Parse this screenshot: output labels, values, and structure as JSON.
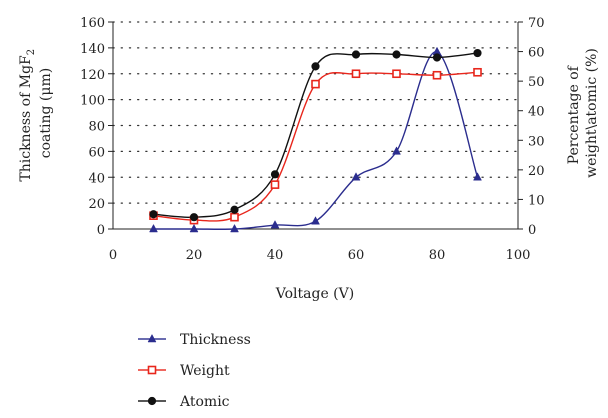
{
  "chart_data": {
    "type": "line",
    "xlabel": "Voltage (V)",
    "ylabel_left_line1": "Thickness of MgF",
    "ylabel_left_sub": "2",
    "ylabel_left_line2": "coating (μm)",
    "ylabel_right_line1": "Percentage of",
    "ylabel_right_line2": "weight\\atomic (%)",
    "xlim": [
      0,
      100
    ],
    "ylim_left": [
      0,
      160
    ],
    "ylim_right": [
      0,
      70
    ],
    "x_ticks": [
      "0",
      "20",
      "40",
      "60",
      "80",
      "100"
    ],
    "y_left_ticks": [
      "0",
      "20",
      "40",
      "60",
      "80",
      "100",
      "120",
      "140",
      "160"
    ],
    "y_right_ticks": [
      "0",
      "10",
      "20",
      "30",
      "40",
      "50",
      "60",
      "70"
    ],
    "grid": "horizontal-dotted",
    "legend_placement": "bottom-left",
    "x": [
      10,
      20,
      30,
      40,
      50,
      60,
      70,
      80,
      90
    ],
    "series": [
      {
        "name": "Thickness",
        "axis": "left",
        "marker": "triangle",
        "color": "#2b2d8e",
        "values": [
          0,
          0,
          0,
          3,
          6,
          40,
          60,
          137,
          40
        ]
      },
      {
        "name": "Weight",
        "axis": "right",
        "marker": "square",
        "color": "#e8261c",
        "values": [
          4.5,
          3,
          4,
          15,
          49,
          52.5,
          52.5,
          52,
          53
        ]
      },
      {
        "name": "Atomic",
        "axis": "right",
        "marker": "circle",
        "color": "#111111",
        "values": [
          5,
          4,
          6.5,
          18.5,
          55,
          59,
          59,
          58,
          59.5
        ]
      }
    ]
  }
}
